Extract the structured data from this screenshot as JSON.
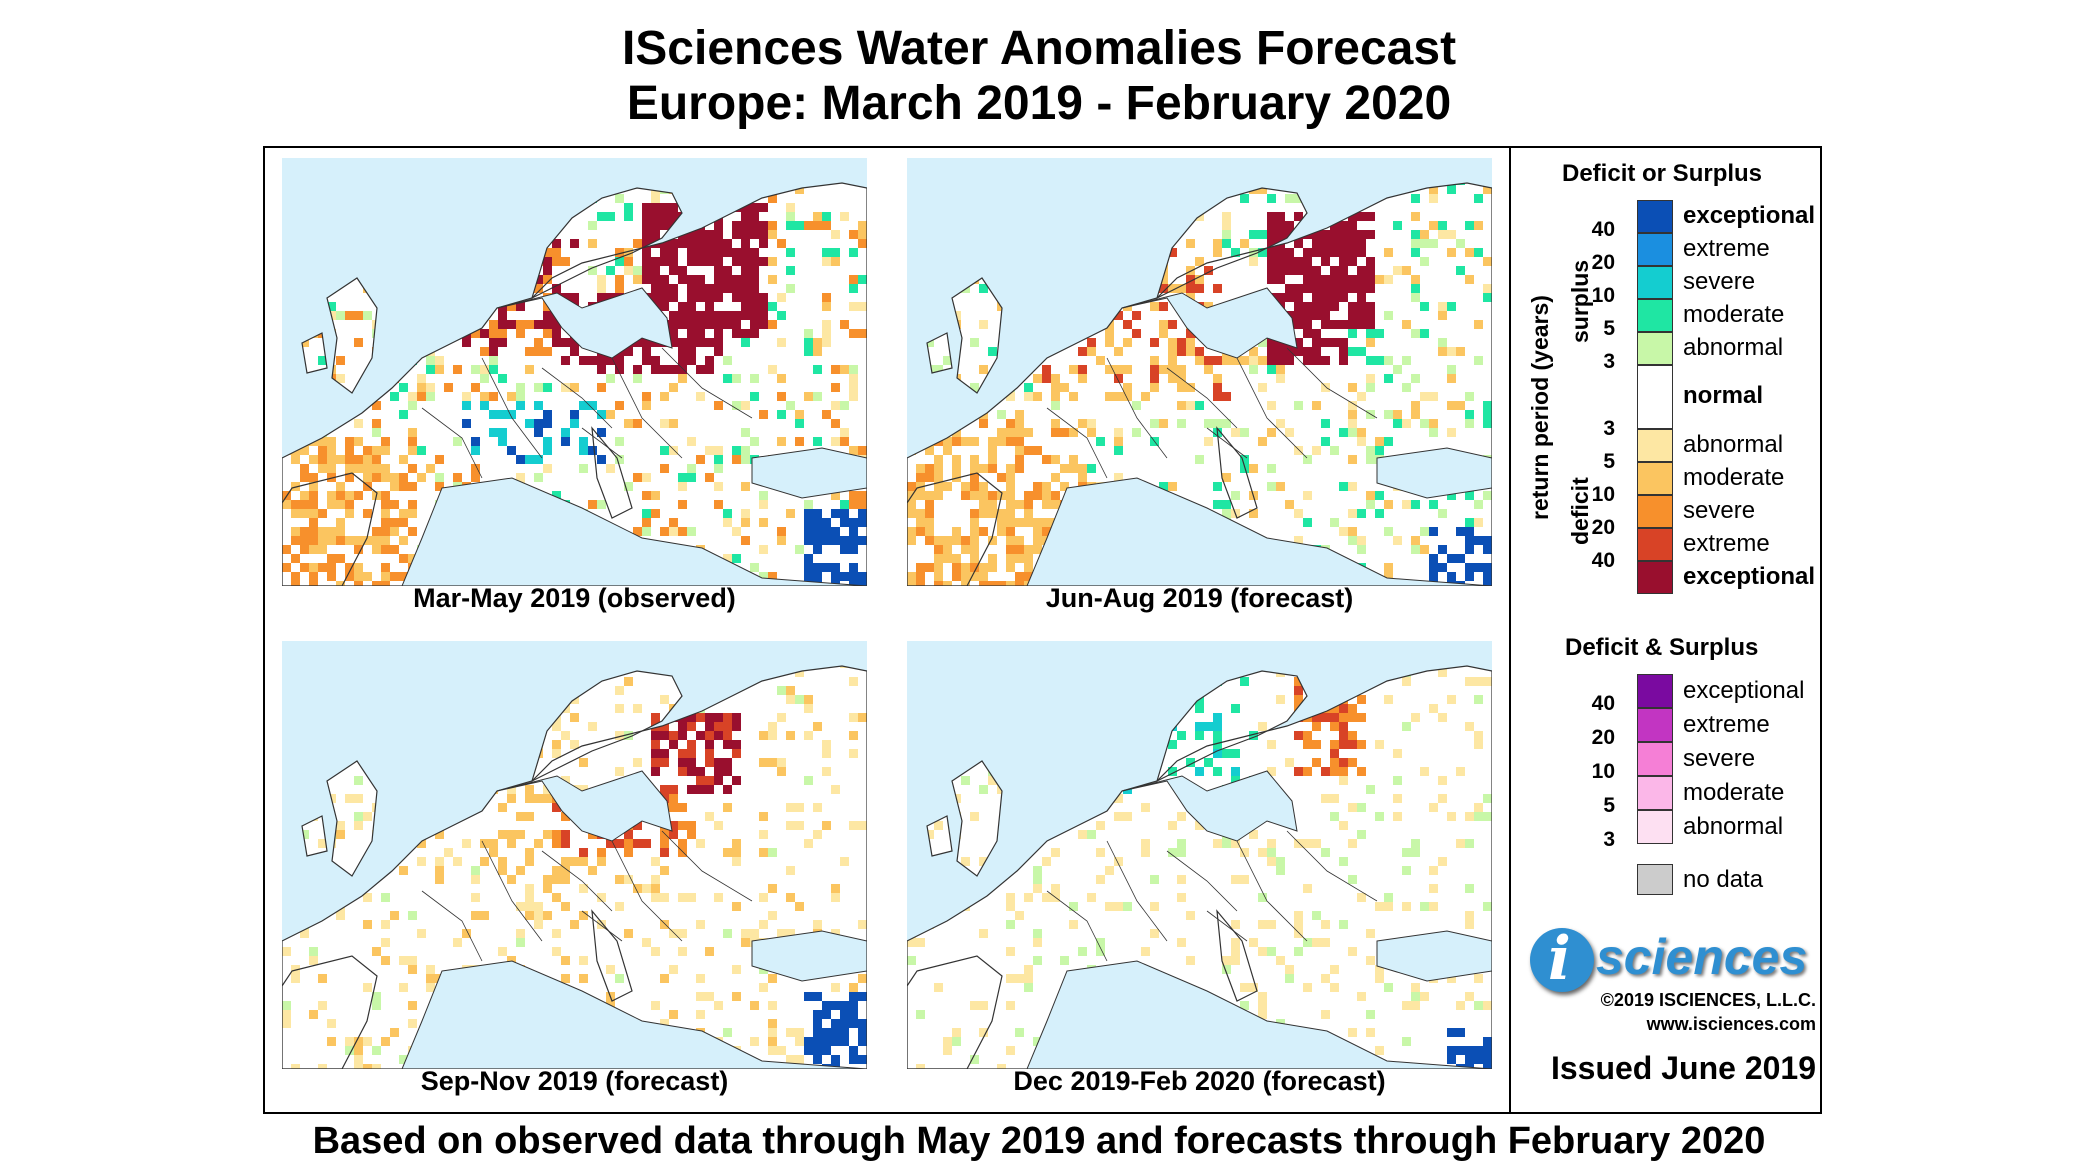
{
  "title_line1": "ISciences Water Anomalies Forecast",
  "title_line2": "Europe: March 2019 - February 2020",
  "footer": "Based on observed data through May 2019 and forecasts through February 2020",
  "panels": [
    {
      "caption": "Mar-May 2019 (observed)"
    },
    {
      "caption": "Jun-Aug 2019 (forecast)"
    },
    {
      "caption": "Sep-Nov 2019 (forecast)"
    },
    {
      "caption": "Dec 2019-Feb 2020 (forecast)"
    }
  ],
  "legend": {
    "title1": "Deficit or Surplus",
    "axis_label": "return period (years)",
    "surplus_label": "surplus",
    "deficit_label": "deficit",
    "surplus": [
      {
        "label": "exceptional",
        "color": "#0b4fb5",
        "bold": true
      },
      {
        "label": "extreme",
        "color": "#1b8fe0"
      },
      {
        "label": "severe",
        "color": "#14cdd0"
      },
      {
        "label": "moderate",
        "color": "#1fe6a3"
      },
      {
        "label": "abnormal",
        "color": "#c8f7a8"
      }
    ],
    "surplus_numbers": [
      "40",
      "20",
      "10",
      "5",
      "3"
    ],
    "normal": {
      "label": "normal",
      "color": "#ffffff"
    },
    "deficit": [
      {
        "label": "abnormal",
        "color": "#fde7a3"
      },
      {
        "label": "moderate",
        "color": "#fbc560"
      },
      {
        "label": "severe",
        "color": "#f7902c"
      },
      {
        "label": "extreme",
        "color": "#d84326"
      },
      {
        "label": "exceptional",
        "color": "#990f2e",
        "bold": true
      }
    ],
    "deficit_numbers": [
      "3",
      "5",
      "10",
      "20",
      "40"
    ],
    "title2": "Deficit & Surplus",
    "both": [
      {
        "label": "exceptional",
        "color": "#7a0aa0"
      },
      {
        "label": "extreme",
        "color": "#c235c2"
      },
      {
        "label": "severe",
        "color": "#f57fd6"
      },
      {
        "label": "moderate",
        "color": "#fbb7e8"
      },
      {
        "label": "abnormal",
        "color": "#fde0f2"
      }
    ],
    "both_numbers": [
      "40",
      "20",
      "10",
      "5",
      "3"
    ],
    "nodata": {
      "label": "no data",
      "color": "#cccccc"
    }
  },
  "logo": {
    "letter": "i",
    "text": "sciences"
  },
  "copyright": "©2019 ISCIENCES, L.L.C.",
  "website": "www.isciences.com",
  "issued": "Issued June 2019",
  "map_colors": {
    "sea": "#d6f0fb",
    "land": "#ffffff",
    "border": "#333333"
  },
  "map_intensity": [
    {
      "panel": 1,
      "dominant": "deficit-exceptional"
    },
    {
      "panel": 2,
      "dominant": "deficit-exceptional"
    },
    {
      "panel": 3,
      "dominant": "deficit-moderate"
    },
    {
      "panel": 4,
      "dominant": "deficit-abnormal"
    }
  ]
}
